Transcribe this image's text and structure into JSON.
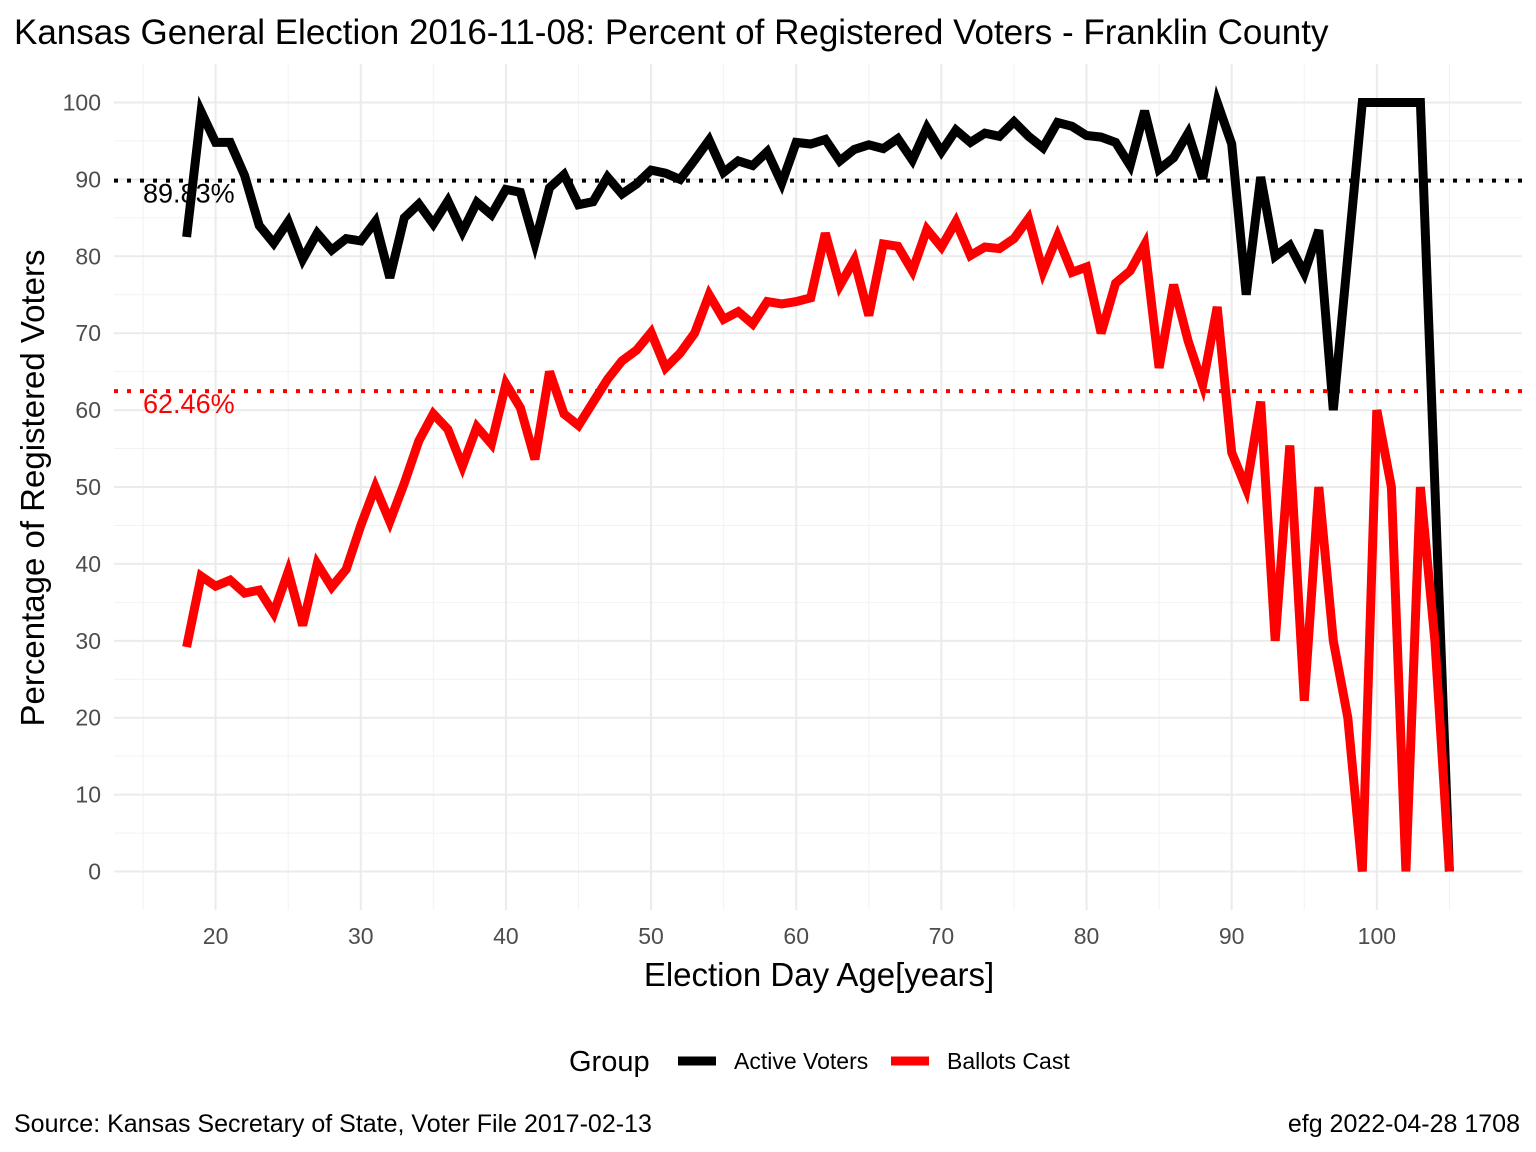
{
  "title": "Kansas General Election 2016-11-08:  Percent of Registered Voters - Franklin County",
  "caption_left": "Source:  Kansas Secretary of State, Voter File  2017-02-13",
  "caption_right": "efg 2022-04-28 1708",
  "chart_data": {
    "type": "line",
    "title": "Kansas General Election 2016-11-08:  Percent of Registered Voters - Franklin County",
    "xlabel": "Election Day Age[years]",
    "ylabel": "Percentage of Registered Voters",
    "xlim": [
      13,
      110
    ],
    "ylim": [
      -5,
      105
    ],
    "x_ticks": [
      20,
      30,
      40,
      50,
      60,
      70,
      80,
      90,
      100
    ],
    "y_ticks": [
      0,
      10,
      20,
      30,
      40,
      50,
      60,
      70,
      80,
      90,
      100
    ],
    "grid": true,
    "legend": {
      "title": "Group",
      "position": "bottom"
    },
    "series": [
      {
        "name": "Active Voters",
        "color": "#000000",
        "x": [
          18,
          19,
          20,
          21,
          22,
          23,
          24,
          25,
          26,
          27,
          28,
          29,
          30,
          31,
          32,
          33,
          34,
          35,
          36,
          37,
          38,
          39,
          40,
          41,
          42,
          43,
          44,
          45,
          46,
          47,
          48,
          49,
          50,
          51,
          52,
          53,
          54,
          55,
          56,
          57,
          58,
          59,
          60,
          61,
          62,
          63,
          64,
          65,
          66,
          67,
          68,
          69,
          70,
          71,
          72,
          73,
          74,
          75,
          76,
          77,
          78,
          79,
          80,
          81,
          82,
          83,
          84,
          85,
          86,
          87,
          88,
          89,
          90,
          91,
          92,
          93,
          94,
          95,
          96,
          97,
          98,
          99,
          100,
          101,
          102,
          103,
          104,
          105
        ],
        "values": [
          82.5,
          98.8,
          94.8,
          94.8,
          90.5,
          84.0,
          81.7,
          84.5,
          79.6,
          83.0,
          80.8,
          82.3,
          82.0,
          84.5,
          77.2,
          85.0,
          86.8,
          84.2,
          87.2,
          83.2,
          87.0,
          85.4,
          88.7,
          88.3,
          81.7,
          88.9,
          90.6,
          86.7,
          87.1,
          90.3,
          88.1,
          89.4,
          91.2,
          90.8,
          90.0,
          92.5,
          95.1,
          90.9,
          92.4,
          91.8,
          93.6,
          89.5,
          94.8,
          94.6,
          95.2,
          92.4,
          93.9,
          94.5,
          94.0,
          95.3,
          92.5,
          96.7,
          93.6,
          96.4,
          94.8,
          96.0,
          95.6,
          97.5,
          95.6,
          94.1,
          97.4,
          96.9,
          95.7,
          95.5,
          94.8,
          91.8,
          98.9,
          91.3,
          92.8,
          96.0,
          90.1,
          100.0,
          94.6,
          75.0,
          90.3,
          80.0,
          81.4,
          77.8,
          83.4,
          60.0,
          80.0,
          100.0,
          100.0,
          100.0,
          100.0,
          100.0,
          50.0,
          0.0
        ]
      },
      {
        "name": "Ballots Cast",
        "color": "#ff0000",
        "x": [
          18,
          19,
          20,
          21,
          22,
          23,
          24,
          25,
          26,
          27,
          28,
          29,
          30,
          31,
          32,
          33,
          34,
          35,
          36,
          37,
          38,
          39,
          40,
          41,
          42,
          43,
          44,
          45,
          46,
          47,
          48,
          49,
          50,
          51,
          52,
          53,
          54,
          55,
          56,
          57,
          58,
          59,
          60,
          61,
          62,
          63,
          64,
          65,
          66,
          67,
          68,
          69,
          70,
          71,
          72,
          73,
          74,
          75,
          76,
          77,
          78,
          79,
          80,
          81,
          82,
          83,
          84,
          85,
          86,
          87,
          88,
          89,
          90,
          91,
          92,
          93,
          94,
          95,
          96,
          97,
          98,
          99,
          100,
          101,
          102,
          103,
          104,
          105
        ],
        "values": [
          29.2,
          38.4,
          37.1,
          37.9,
          36.2,
          36.6,
          33.6,
          39.0,
          32.0,
          40.0,
          37.0,
          39.3,
          45.0,
          50.0,
          45.5,
          50.5,
          56.0,
          59.5,
          57.5,
          52.7,
          57.8,
          55.6,
          63.4,
          60.3,
          53.6,
          65.0,
          59.5,
          58.0,
          61.0,
          64.0,
          66.4,
          67.8,
          70.1,
          65.5,
          67.4,
          70.0,
          75.0,
          71.8,
          72.8,
          71.2,
          74.1,
          73.8,
          74.1,
          74.6,
          83.0,
          76.2,
          79.5,
          72.3,
          81.6,
          81.3,
          78.1,
          83.5,
          81.2,
          84.5,
          80.1,
          81.2,
          81.0,
          82.3,
          84.9,
          78.0,
          82.6,
          77.9,
          78.6,
          70.0,
          76.5,
          78.1,
          81.5,
          65.5,
          76.3,
          69.0,
          63.3,
          73.4,
          54.5,
          49.8,
          61.1,
          30.0,
          55.4,
          22.2,
          50.0,
          30.0,
          20.0,
          0.0,
          60.0,
          50.0,
          0.0,
          50.0,
          30.0,
          0.0
        ]
      }
    ],
    "reference_lines": [
      {
        "value": 89.83,
        "label": "89.83%",
        "color": "#000000"
      },
      {
        "value": 62.46,
        "label": "62.46%",
        "color": "#ff0000"
      }
    ]
  }
}
